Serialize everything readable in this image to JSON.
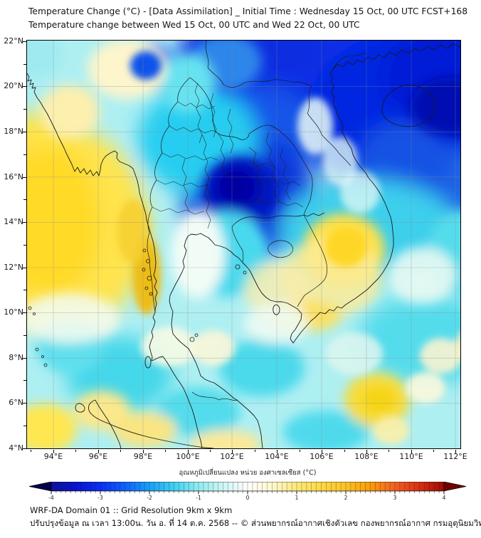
{
  "header": {
    "title_line1": "Temperature Change (°C) - [Data Assimilation] _ Initial Time : Wednesday 15 Oct, 00 UTC FCST+168",
    "title_line2": "Temperature change between Wed 15 Oct, 00 UTC and Wed 22 Oct, 00 UTC"
  },
  "map": {
    "lat_ticks": [
      "22°N",
      "20°N",
      "18°N",
      "16°N",
      "14°N",
      "12°N",
      "10°N",
      "8°N",
      "6°N",
      "4°N"
    ],
    "lon_ticks": [
      "94°E",
      "96°E",
      "98°E",
      "100°E",
      "102°E",
      "104°E",
      "106°E",
      "108°E",
      "110°E",
      "112°E"
    ]
  },
  "colorbar": {
    "title": "อุณหภูมิเปลี่ยนแปลง หน่วย องศาเซลเซียส (°C)",
    "tick_labels": [
      "-4",
      "-3",
      "-2",
      "-1",
      "0",
      "1",
      "2",
      "3",
      "4"
    ],
    "min": -4,
    "max": 4,
    "stops": [
      {
        "v": -4,
        "c": "#10109b"
      },
      {
        "v": -3.5,
        "c": "#0713cf"
      },
      {
        "v": -3,
        "c": "#0a2ff4"
      },
      {
        "v": -2.5,
        "c": "#0c62fa"
      },
      {
        "v": -2,
        "c": "#18a0f8"
      },
      {
        "v": -1.5,
        "c": "#3fd0f0"
      },
      {
        "v": -1,
        "c": "#92ecf2"
      },
      {
        "v": -0.5,
        "c": "#ccf6f4"
      },
      {
        "v": 0,
        "c": "#fefefb"
      },
      {
        "v": 0.5,
        "c": "#fff8cf"
      },
      {
        "v": 1,
        "c": "#ffe878"
      },
      {
        "v": 1.5,
        "c": "#fed844"
      },
      {
        "v": 2,
        "c": "#fcc225"
      },
      {
        "v": 2.5,
        "c": "#fa9b08"
      },
      {
        "v": 3,
        "c": "#f26021"
      },
      {
        "v": 3.5,
        "c": "#d82f12"
      },
      {
        "v": 4,
        "c": "#9b0a04"
      }
    ],
    "under_arrow_color": "#00004f",
    "over_arrow_color": "#730000"
  },
  "footer": {
    "line1": "WRF-DA Domain 01 :: Grid Resolution 9km x 9km",
    "line2": "ปรับปรุงข้อมูล ณ เวลา 13:00น. วัน อ. ที่ 14 ต.ค. 2568 -- © ส่วนพยากรณ์อากาศเชิงตัวเลข กองพยากรณ์อากาศ กรมอุตุนิยมวิทยา"
  }
}
